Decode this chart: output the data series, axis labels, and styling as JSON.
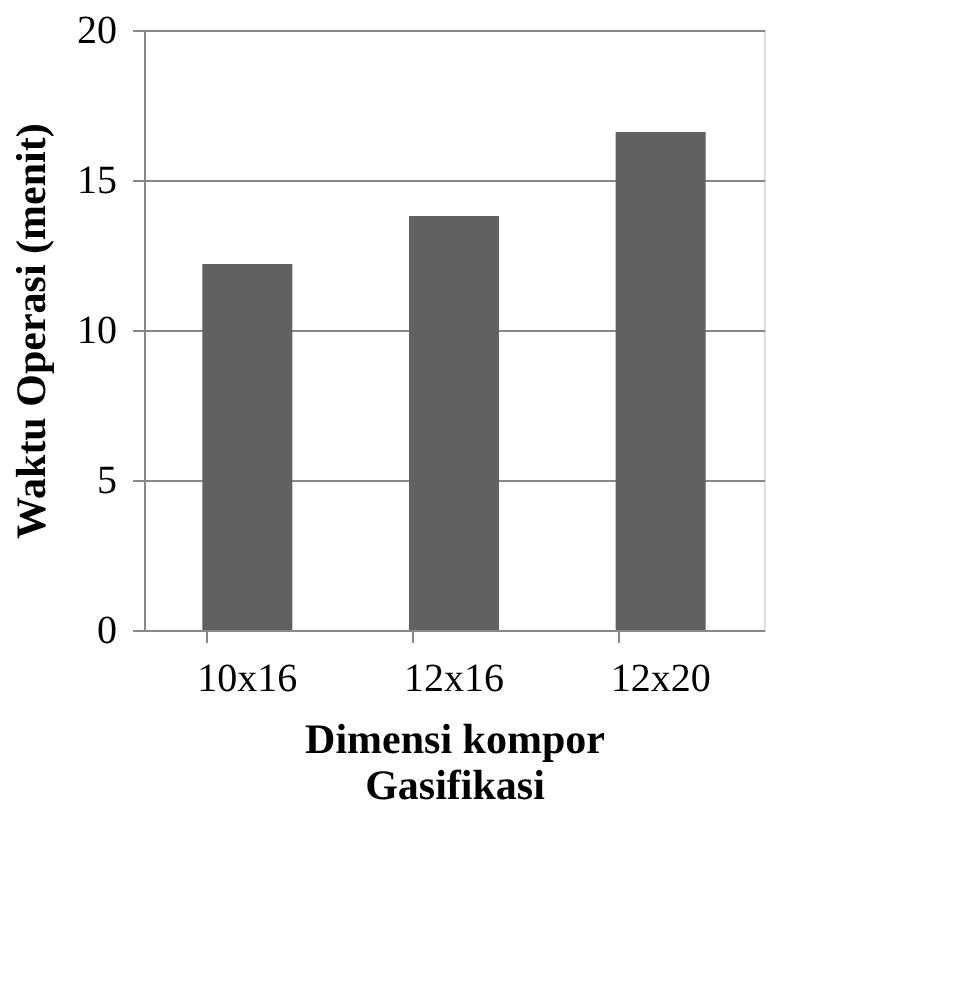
{
  "chart_data": {
    "type": "bar",
    "categories": [
      "10x16",
      "12x16",
      "12x20"
    ],
    "values": [
      12.2,
      13.8,
      16.6
    ],
    "color": "#616161",
    "xlabel": "Dimensi kompor\nGasifikasi",
    "ylabel": "Waktu Operasi (menit)",
    "ylim": [
      0,
      20
    ],
    "yticks": [
      0,
      5,
      10,
      15,
      20
    ],
    "grid": "y"
  }
}
